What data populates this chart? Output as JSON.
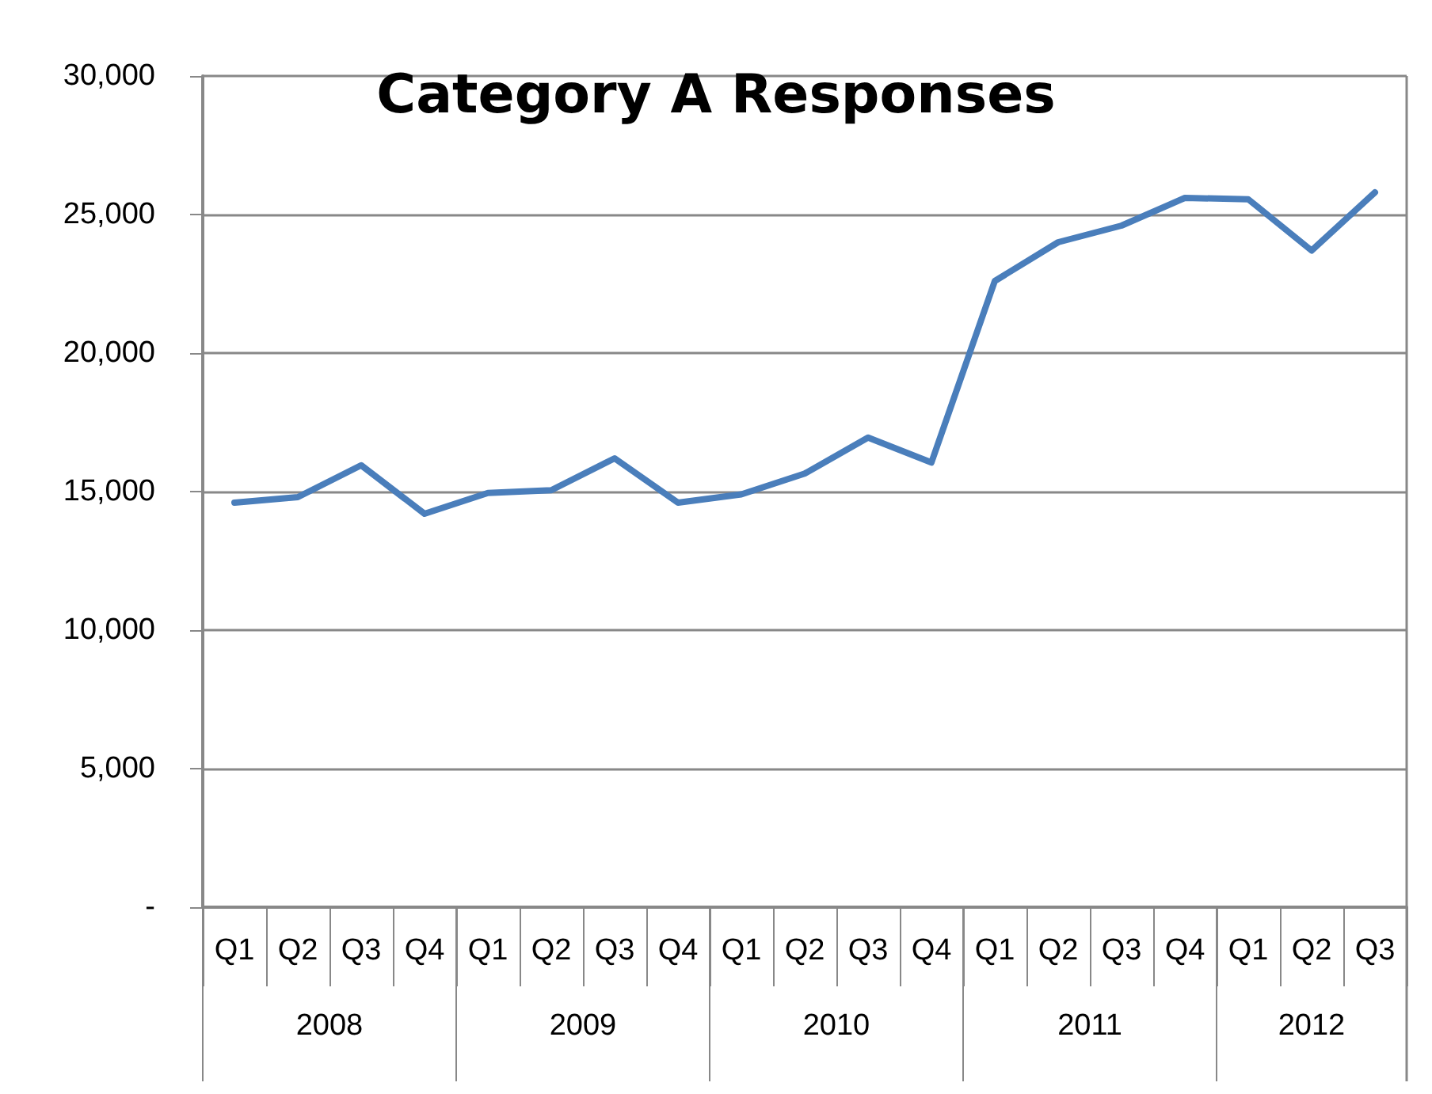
{
  "chart_data": {
    "type": "line",
    "title": "Category A Responses",
    "categories": [
      "Q1",
      "Q2",
      "Q3",
      "Q4",
      "Q1",
      "Q2",
      "Q3",
      "Q4",
      "Q1",
      "Q2",
      "Q3",
      "Q4",
      "Q1",
      "Q2",
      "Q3",
      "Q4",
      "Q1",
      "Q2",
      "Q3"
    ],
    "annotations": [
      "2008",
      "2009",
      "2010",
      "2011",
      "2012"
    ],
    "series": [
      {
        "color": "#4a7ebb",
        "values": [
          14600,
          14800,
          15950,
          14200,
          14950,
          15050,
          16200,
          14600,
          14900,
          15650,
          16950,
          16050,
          22600,
          24000,
          24600,
          25600,
          25550,
          23700,
          25800
        ]
      }
    ],
    "ylim": [
      0,
      30000
    ],
    "yticks": [
      {
        "value": 0,
        "label": "-"
      },
      {
        "value": 5000,
        "label": "5,000"
      },
      {
        "value": 10000,
        "label": "10,000"
      },
      {
        "value": 15000,
        "label": "15,000"
      },
      {
        "value": 20000,
        "label": "20,000"
      },
      {
        "value": 25000,
        "label": "25,000"
      },
      {
        "value": 30000,
        "label": "30,000"
      }
    ],
    "grid": "y",
    "marker": "none",
    "line_style": "solid"
  }
}
